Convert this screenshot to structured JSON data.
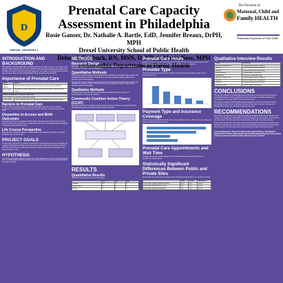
{
  "title": "Prenatal Care Capacity Assessment in Philadelphia",
  "authors": "Rosie Ganser, Dr. Nathalie A. Bartle, EdD, Jennifer Breaux, DrPH, MPH",
  "institution": "Drexel University School of Public Health",
  "authors2": "Deborah Roebuck, RN, MSN, DrNP(c), Maria Ness, MPH",
  "department": "Philadelphia Department of Public Health",
  "logos": {
    "left": "DREXEL UNIVERSITY",
    "right_line1": "The Division of",
    "right_line2": "Maternal, Child and",
    "right_line3": "Family HEALTH",
    "right_line4": "Philadelphia Department of Public Health"
  },
  "col1": {
    "intro_heading": "INTRODUCTION AND BACKGROUND",
    "intro_text": "Philadelphia's infant mortality rate is of 2008 was 10.8 per 1,000 live births - an increase in the previous infant mortality rate of 9.1 per 1,000 live births. Prenatal Care(based on a high infant mortality rate) and the risk with a low birth weight are more. Black non-Hispanic infant mortality rate is nearly 3 times as high in Philadelphia having increasing infant mortality.",
    "importance_heading": "Importance of Prenatal Care",
    "table1_headers": [
      "Goals",
      "Results"
    ],
    "table1_rows": [
      [
        "For the Mother",
        "Reduced risk for bleeding, anemia, preeclampsia, stress, gestational diabetes"
      ],
      [
        "For the Baby",
        "Recognition of genetic abnormalities, assess fetal development, reduced low birth weight"
      ]
    ],
    "table2_title": "Health Consequences of Lack of Prenatal Care",
    "table2_rows": [
      [
        "For the Mother",
        "Maternal mortality and morbidity"
      ],
      [
        "For the Baby",
        "Low birth weight babies are estimated to be more likely to die in their first year"
      ]
    ],
    "barriers_heading": "Barriers to Prenatal Care",
    "barriers_text": "In light of barriers and generalized, Lack of transportation, distance to care, childcare, experience, communication, language barriers, lack of insurance, and low socioeconomic status.",
    "disparities_heading": "Disparities in Access and Birth Outcomes",
    "disparities_text": "Prenatal Care Measures analyzed in 2008. African American women had one of the lowest rates of first-trimester prenatal care. Overall health outcomes in Philadelphia reflect disparities in low birth weight and preterm birth.",
    "life_heading": "Life Course Perspective",
    "life_text": "Addresses the cumulative biological, environmental, psychological, behavioral, and social, population over the life course.",
    "project_heading": "PROJECT GOALS",
    "project_text": "Primary goal of this study: To conduct an assessment to determine the extent of prenatal care capacity in Philadelphia. Provide community data to inform efforts that will improve maternal and child health outcomes, evaluate the quality and variety of programs and facilities, and improve access to care.",
    "hypothesis_heading": "HYPOTHESIS",
    "hypothesis_text": "The number of providers offering prenatal care will be adequate to meet the needs of pregnant women in Philadelphia. Whether prenatal care is adequate to serve needs will be determined by program capacity."
  },
  "col2": {
    "methods_heading": "METHODS",
    "research_heading": "Research Design",
    "research_text": "Mixed method approach with a survey questionnaire and qualitative interviews. Assessment of prenatal care providers across Philadelphia.",
    "quant_heading": "Quantitative Methods",
    "quant_text": "Prenatal care provider listings were requested from the Maternal and Child Health program and validated by telephone contact. Providers were surveyed regarding capacity, waiting times, payment types, and languages.",
    "qual_heading": "Qualitative Methods",
    "qual_text": "Interviews were conducted with key stakeholders including physicians, nurses and administrators of prenatal care facilities.",
    "ccat_heading": "Community Coalition Action Theory (CCAT)",
    "ccat_text": "An assessment model of coalition building toward community change to be applied within the Philadelphia Department of Public Health coalition framework.",
    "results_heading": "RESULTS",
    "quant_results_heading": "Quantitative Results",
    "quant_results_text": "Breakdown of responses across provider types.",
    "table3_headers": [
      "",
      "Yes",
      "No",
      "N/A"
    ],
    "table3_rows": [
      [
        "Hospital",
        "12",
        "3",
        "1"
      ],
      [
        "Health center",
        "15",
        "4",
        "2"
      ],
      [
        "Private",
        "9",
        "5",
        "3"
      ]
    ]
  },
  "col3": {
    "hours_heading": "Prenatal Care Hours",
    "hours_text": "Majority of providers are open between 8am and 5pm. Only 11% of sites currently open before 8am and 22% of sites are open after 5pm. Few sites are open on weekends.",
    "provider_heading": "Provider Type",
    "provider_text": "Fifty-two prenatal providers surveyed. Hospital clinics and federally qualified health centers accounted for most.",
    "payment_heading": "Payment Type and Insurance Coverage",
    "payment_text": "100% of sites accept Medicaid. 84% of sites accept private insurance. 40% of sites see uninsured patients. 52% offer sliding fee scale.",
    "appointments_heading": "Prenatal Care Appointments and Wait Time",
    "appointments_text": "Average wait for new prenatal appointment is 2 weeks. Most sites provide first trimester appointment within 2 weeks.",
    "stats_heading": "Statistically Significant Differences Between Public and Private Sites",
    "stats_text": "Private sites were more likely to accept private insurance and less likely to see uninsured women.",
    "table4_headers": [
      "",
      "Public",
      "Private",
      "Significance"
    ],
    "table4_rows": [
      [
        "Percentage accepting Uninsured Patients",
        "80.0",
        "18.2",
        "p<0.05"
      ],
      [
        "Percentage offering Sliding fee scale",
        "86.7",
        "27.3",
        "p<0.05"
      ],
      [
        "Percentage providing transportation",
        "60.0",
        "18.2",
        "p<0.05"
      ]
    ]
  },
  "col4": {
    "qual_results_heading": "Qualitative Interview Results",
    "table5_headers": [
      "Theme",
      "Key Points"
    ],
    "table5_rows": [
      [
        "Barriers to Prenatal Care",
        "Transportation, insurance, childcare"
      ],
      [
        "Capacity",
        "Most sites able to take new patients"
      ],
      [
        "Outreach",
        "Limited community outreach efforts"
      ],
      [
        "Patient Education",
        "Classes offered at some sites"
      ],
      [
        "Collaboration",
        "Interest in coordinated network"
      ]
    ],
    "conclusions_heading": "CONCLUSIONS",
    "conclusions_text": "Prenatal care capacity in Philadelphia appears adequate in number of providers; however accessibility barriers remain, particularly in hours of operation, insurance coverage and transportation, which may contribute to late entry into care.",
    "recommendations_heading": "RECOMMENDATIONS",
    "recommendations_text": "Extend hours of operation to evenings and weekends. Expand transportation assistance and outreach to underserved communities. Increase coordination among providers and develop a referral network. Promote early entry into prenatal care through community education.",
    "ack_heading": "Acknowledgements: Maternal Child Family Health Division, Philadelphia Department of Public Health, Maternal and Child Health Working Group, Drexel University School of Public Health, Maternity Care Coalition"
  },
  "chart_colors": {
    "bar1": "#4a7fc1",
    "bar2": "#c0504d",
    "bar3": "#9bbb59"
  }
}
